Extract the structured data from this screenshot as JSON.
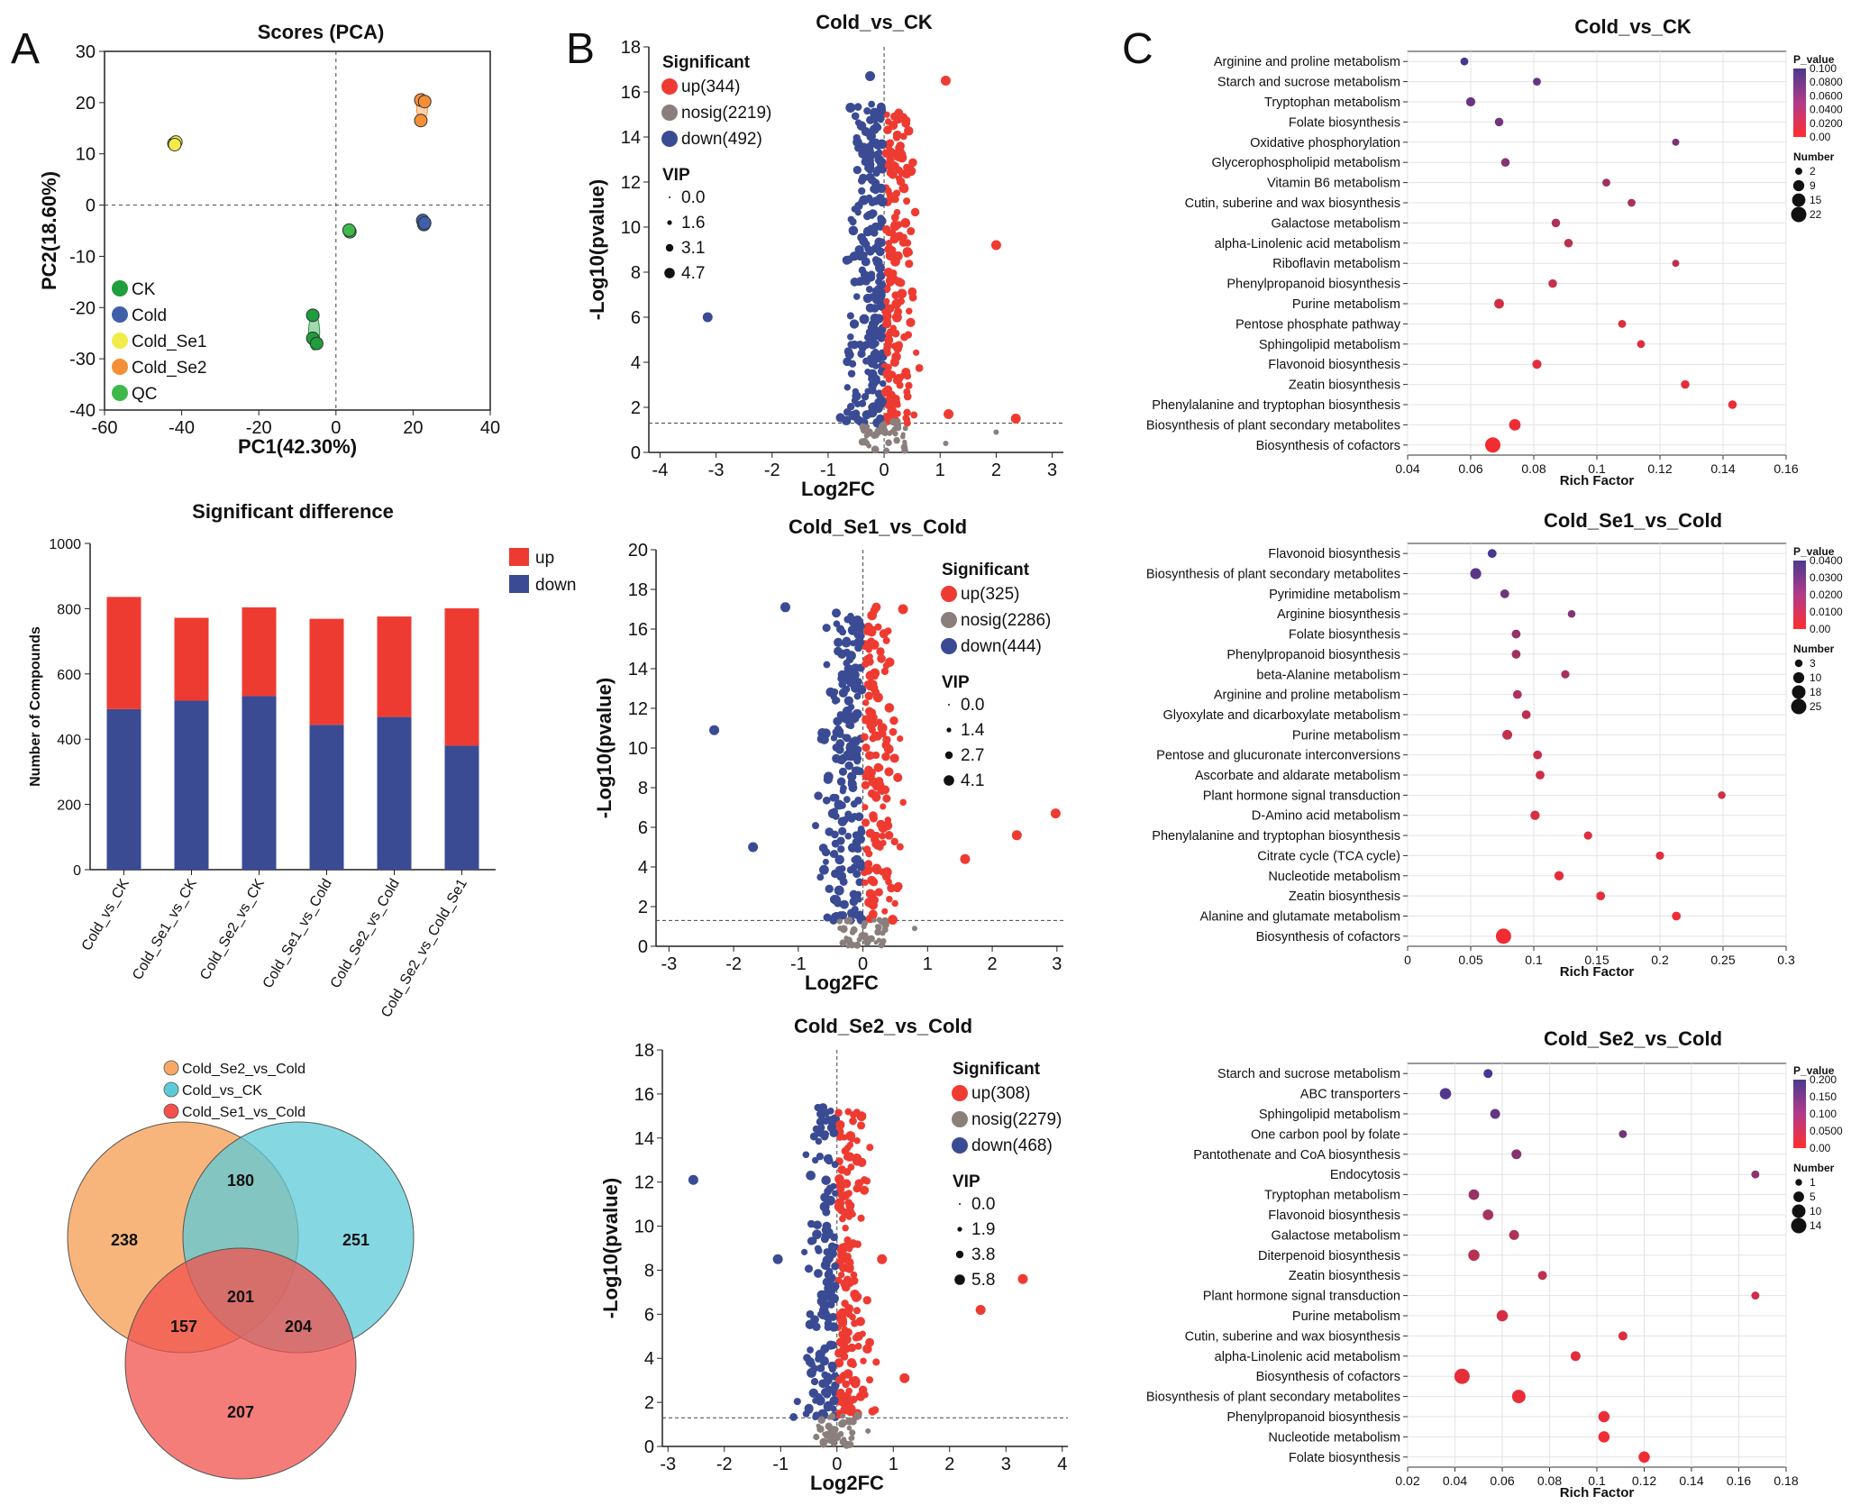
{
  "panels": {
    "A": "A",
    "B": "B",
    "C": "C"
  },
  "colors": {
    "up": "#ee3b32",
    "down": "#3a4b94",
    "nosig": "#8a7f7c",
    "CK": "#1e9e3c",
    "Cold": "#3f5faa",
    "Cold_Se1": "#f1ec4a",
    "Cold_Se2": "#f58f35",
    "QC": "#3eb84a",
    "venn1": "#f7a864",
    "venn2": "#5ccbd8",
    "venn3": "#f2514c"
  },
  "chart_data": [
    {
      "id": "pca",
      "type": "scatter",
      "title": "Scores (PCA)",
      "xlabel": "PC1(42.30%)",
      "ylabel": "PC2(18.60%)",
      "xlim": [
        -60,
        40
      ],
      "ylim": [
        -40,
        30
      ],
      "xticks": [
        -60,
        -40,
        -20,
        0,
        20,
        40
      ],
      "yticks": [
        -40,
        -30,
        -20,
        -10,
        0,
        10,
        20,
        30
      ],
      "legend": [
        "CK",
        "Cold",
        "Cold_Se1",
        "Cold_Se2",
        "QC"
      ],
      "groups": [
        {
          "name": "CK",
          "points": [
            [
              -6,
              -21.5
            ],
            [
              -6,
              -26
            ],
            [
              -5,
              -27
            ]
          ]
        },
        {
          "name": "Cold",
          "points": [
            [
              22.5,
              -3
            ],
            [
              22.8,
              -3.8
            ],
            [
              23,
              -3.5
            ]
          ]
        },
        {
          "name": "Cold_Se1",
          "points": [
            [
              -42,
              12
            ],
            [
              -41.5,
              12.3
            ],
            [
              -41.8,
              11.8
            ]
          ]
        },
        {
          "name": "Cold_Se2",
          "points": [
            [
              22,
              20.5
            ],
            [
              23,
              20.2
            ],
            [
              22,
              16.5
            ]
          ]
        },
        {
          "name": "QC",
          "points": [
            [
              3.5,
              -5
            ],
            [
              3.6,
              -5.2
            ],
            [
              3.4,
              -4.9
            ]
          ]
        }
      ]
    },
    {
      "id": "bars",
      "type": "bar",
      "title": "Significant difference",
      "ylabel": "Number of Compounds",
      "ylim": [
        0,
        1000
      ],
      "yticks": [
        0,
        200,
        400,
        600,
        800,
        1000
      ],
      "categories": [
        "Cold_vs_CK",
        "Cold_Se1_vs_CK",
        "Cold_Se2_vs_CK",
        "Cold_Se1_vs_Cold",
        "Cold_Se2_vs_Cold",
        "Cold_Se2_vs_Cold_Se1"
      ],
      "series": [
        {
          "name": "down",
          "values": [
            492,
            518,
            532,
            444,
            468,
            380
          ]
        },
        {
          "name": "up",
          "values": [
            344,
            254,
            272,
            325,
            308,
            421
          ]
        }
      ],
      "legend": [
        "up",
        "down"
      ]
    },
    {
      "id": "venn",
      "type": "venn",
      "legend": [
        "Cold_Se2_vs_Cold",
        "Cold_vs_CK",
        "Cold_Se1_vs_Cold"
      ],
      "regions": {
        "only_se2": 238,
        "only_ck": 251,
        "only_se1": 207,
        "se2_ck": 180,
        "se2_se1": 157,
        "ck_se1": 204,
        "all": 201
      }
    },
    {
      "id": "volcano1",
      "type": "scatter",
      "title": "Cold_vs_CK",
      "xlabel": "Log2FC",
      "ylabel": "-Log10(pvalue)",
      "xlim": [
        -4.2,
        3.2
      ],
      "ylim": [
        0,
        18
      ],
      "xticks": [
        -4,
        -3,
        -2,
        -1,
        0,
        1,
        2,
        3
      ],
      "yticks": [
        0,
        2,
        4,
        6,
        8,
        10,
        12,
        14,
        16,
        18
      ],
      "threshold": 1.3,
      "legend_title": "Significant",
      "legend": [
        "up(344)",
        "nosig(2219)",
        "down(492)"
      ],
      "vip_title": "VIP",
      "vip": [
        "0.0",
        "1.6",
        "3.1",
        "4.7"
      ],
      "outliers": [
        {
          "x": 1.1,
          "y": 16.5,
          "c": "up"
        },
        {
          "x": 2.0,
          "y": 9.2,
          "c": "up"
        },
        {
          "x": 1.15,
          "y": 1.7,
          "c": "up"
        },
        {
          "x": 2.35,
          "y": 1.5,
          "c": "up"
        },
        {
          "x": -3.15,
          "y": 6.0,
          "c": "down"
        },
        {
          "x": -0.6,
          "y": 15.3,
          "c": "down"
        },
        {
          "x": -0.25,
          "y": 16.7,
          "c": "down"
        },
        {
          "x": 2.0,
          "y": 0.9,
          "c": "nosig"
        },
        {
          "x": 1.1,
          "y": 0.4,
          "c": "nosig"
        }
      ]
    },
    {
      "id": "volcano2",
      "type": "scatter",
      "title": "Cold_Se1_vs_Cold",
      "xlabel": "Log2FC",
      "ylabel": "-Log10(pvalue)",
      "xlim": [
        -3.2,
        3.1
      ],
      "ylim": [
        0,
        20
      ],
      "xticks": [
        -3,
        -2,
        -1,
        0,
        1,
        2,
        3
      ],
      "yticks": [
        0,
        2,
        4,
        6,
        8,
        10,
        12,
        14,
        16,
        18,
        20
      ],
      "threshold": 1.3,
      "legend_title": "Significant",
      "legend": [
        "up(325)",
        "nosig(2286)",
        "down(444)"
      ],
      "vip_title": "VIP",
      "vip": [
        "0.0",
        "1.4",
        "2.7",
        "4.1"
      ],
      "outliers": [
        {
          "x": 2.98,
          "y": 6.7,
          "c": "up"
        },
        {
          "x": 2.38,
          "y": 5.6,
          "c": "up"
        },
        {
          "x": 1.58,
          "y": 4.4,
          "c": "up"
        },
        {
          "x": 0.62,
          "y": 17.0,
          "c": "up"
        },
        {
          "x": -2.3,
          "y": 10.9,
          "c": "down"
        },
        {
          "x": -1.7,
          "y": 5.0,
          "c": "down"
        },
        {
          "x": -1.2,
          "y": 17.1,
          "c": "down"
        },
        {
          "x": 0.8,
          "y": 0.9,
          "c": "nosig"
        }
      ]
    },
    {
      "id": "volcano3",
      "type": "scatter",
      "title": "Cold_Se2_vs_Cold",
      "xlabel": "Log2FC",
      "ylabel": "-Log10(pvalue)",
      "xlim": [
        -3.1,
        4.1
      ],
      "ylim": [
        0,
        18
      ],
      "xticks": [
        -3,
        -2,
        -1,
        0,
        1,
        2,
        3,
        4
      ],
      "yticks": [
        0,
        2,
        4,
        6,
        8,
        10,
        12,
        14,
        16,
        18
      ],
      "threshold": 1.3,
      "legend_title": "Significant",
      "legend": [
        "up(308)",
        "nosig(2279)",
        "down(468)"
      ],
      "vip_title": "VIP",
      "vip": [
        "0.0",
        "1.9",
        "3.8",
        "5.8"
      ],
      "outliers": [
        {
          "x": 3.3,
          "y": 7.6,
          "c": "up"
        },
        {
          "x": 2.55,
          "y": 6.2,
          "c": "up"
        },
        {
          "x": 1.2,
          "y": 3.1,
          "c": "up"
        },
        {
          "x": 0.8,
          "y": 8.5,
          "c": "up"
        },
        {
          "x": -2.55,
          "y": 12.1,
          "c": "down"
        },
        {
          "x": -1.05,
          "y": 8.5,
          "c": "down"
        },
        {
          "x": 0.55,
          "y": 0.7,
          "c": "nosig"
        }
      ]
    },
    {
      "id": "enrich1",
      "type": "scatter",
      "title": "Cold_vs_CK",
      "xlabel": "Rich Factor",
      "xlim": [
        0.04,
        0.16
      ],
      "xticks": [
        "0.04",
        "0.06",
        "0.08",
        "0.1",
        "0.12",
        "0.14",
        "0.16"
      ],
      "pvalue_title": "P_value",
      "pvalue_ticks": [
        "0.100",
        "0.0800",
        "0.0600",
        "0.0400",
        "0.0200",
        "0.00"
      ],
      "pmax": 0.1,
      "number_title": "Number",
      "number_ticks": [
        "2",
        "9",
        "15",
        "22"
      ],
      "nmax": 22,
      "pathways": [
        {
          "name": "Arginine and proline metabolism",
          "rf": 0.058,
          "p": 0.1,
          "n": 3
        },
        {
          "name": "Starch and sucrose metabolism",
          "rf": 0.081,
          "p": 0.085,
          "n": 3
        },
        {
          "name": "Tryptophan metabolism",
          "rf": 0.06,
          "p": 0.08,
          "n": 5
        },
        {
          "name": "Folate biosynthesis",
          "rf": 0.069,
          "p": 0.075,
          "n": 4
        },
        {
          "name": "Oxidative phosphorylation",
          "rf": 0.125,
          "p": 0.07,
          "n": 2
        },
        {
          "name": "Glycerophospholipid metabolism",
          "rf": 0.071,
          "p": 0.065,
          "n": 4
        },
        {
          "name": "Vitamin B6 metabolism",
          "rf": 0.103,
          "p": 0.05,
          "n": 3
        },
        {
          "name": "Cutin, suberine and wax biosynthesis",
          "rf": 0.111,
          "p": 0.045,
          "n": 3
        },
        {
          "name": "Galactose metabolism",
          "rf": 0.087,
          "p": 0.04,
          "n": 4
        },
        {
          "name": "alpha-Linolenic acid metabolism",
          "rf": 0.091,
          "p": 0.035,
          "n": 4
        },
        {
          "name": "Riboflavin metabolism",
          "rf": 0.125,
          "p": 0.03,
          "n": 2
        },
        {
          "name": "Phenylpropanoid biosynthesis",
          "rf": 0.086,
          "p": 0.025,
          "n": 4
        },
        {
          "name": "Purine metabolism",
          "rf": 0.069,
          "p": 0.02,
          "n": 6
        },
        {
          "name": "Pentose phosphate pathway",
          "rf": 0.108,
          "p": 0.015,
          "n": 3
        },
        {
          "name": "Sphingolipid metabolism",
          "rf": 0.114,
          "p": 0.012,
          "n": 3
        },
        {
          "name": "Flavonoid biosynthesis",
          "rf": 0.081,
          "p": 0.01,
          "n": 5
        },
        {
          "name": "Zeatin biosynthesis",
          "rf": 0.128,
          "p": 0.008,
          "n": 4
        },
        {
          "name": "Phenylalanine and tryptophan biosynthesis",
          "rf": 0.143,
          "p": 0.005,
          "n": 4
        },
        {
          "name": "Biosynthesis of plant secondary metabolites",
          "rf": 0.074,
          "p": 0.003,
          "n": 10
        },
        {
          "name": "Biosynthesis of cofactors",
          "rf": 0.067,
          "p": 0.0005,
          "n": 22
        }
      ]
    },
    {
      "id": "enrich2",
      "type": "scatter",
      "title": "Cold_Se1_vs_Cold",
      "xlabel": "Rich Factor",
      "xlim": [
        0,
        0.3
      ],
      "xticks": [
        "0",
        "0.05",
        "0.1",
        "0.15",
        "0.2",
        "0.25",
        "0.3"
      ],
      "pvalue_title": "P_value",
      "pvalue_ticks": [
        "0.0400",
        "0.0300",
        "0.0200",
        "0.0100",
        "0.00"
      ],
      "pmax": 0.045,
      "number_title": "Number",
      "number_ticks": [
        "3",
        "10",
        "18",
        "25"
      ],
      "nmax": 25,
      "pathways": [
        {
          "name": "Flavonoid biosynthesis",
          "rf": 0.067,
          "p": 0.045,
          "n": 5
        },
        {
          "name": "Biosynthesis of plant secondary metabolites",
          "rf": 0.054,
          "p": 0.04,
          "n": 10
        },
        {
          "name": "Pyrimidine metabolism",
          "rf": 0.077,
          "p": 0.035,
          "n": 5
        },
        {
          "name": "Arginine biosynthesis",
          "rf": 0.13,
          "p": 0.03,
          "n": 3
        },
        {
          "name": "Folate biosynthesis",
          "rf": 0.086,
          "p": 0.025,
          "n": 5
        },
        {
          "name": "Phenylpropanoid biosynthesis",
          "rf": 0.086,
          "p": 0.022,
          "n": 5
        },
        {
          "name": "beta-Alanine metabolism",
          "rf": 0.125,
          "p": 0.02,
          "n": 4
        },
        {
          "name": "Arginine and proline metabolism",
          "rf": 0.087,
          "p": 0.018,
          "n": 5
        },
        {
          "name": "Glyoxylate and dicarboxylate metabolism",
          "rf": 0.094,
          "p": 0.015,
          "n": 5
        },
        {
          "name": "Purine metabolism",
          "rf": 0.079,
          "p": 0.013,
          "n": 7
        },
        {
          "name": "Pentose and glucuronate interconversions",
          "rf": 0.103,
          "p": 0.011,
          "n": 5
        },
        {
          "name": "Ascorbate and aldarate metabolism",
          "rf": 0.105,
          "p": 0.01,
          "n": 5
        },
        {
          "name": "Plant hormone signal transduction",
          "rf": 0.249,
          "p": 0.009,
          "n": 3
        },
        {
          "name": "D-Amino acid metabolism",
          "rf": 0.101,
          "p": 0.008,
          "n": 6
        },
        {
          "name": "Phenylalanine and tryptophan biosynthesis",
          "rf": 0.143,
          "p": 0.007,
          "n": 4
        },
        {
          "name": "Citrate cycle (TCA cycle)",
          "rf": 0.2,
          "p": 0.005,
          "n": 4
        },
        {
          "name": "Nucleotide metabolism",
          "rf": 0.12,
          "p": 0.004,
          "n": 6
        },
        {
          "name": "Zeatin biosynthesis",
          "rf": 0.153,
          "p": 0.003,
          "n": 5
        },
        {
          "name": "Alanine and glutamate metabolism",
          "rf": 0.213,
          "p": 0.002,
          "n": 5
        },
        {
          "name": "Biosynthesis of cofactors",
          "rf": 0.076,
          "p": 0.0003,
          "n": 25
        }
      ]
    },
    {
      "id": "enrich3",
      "type": "scatter",
      "title": "Cold_Se2_vs_Cold",
      "xlabel": "Rich Factor",
      "xlim": [
        0.02,
        0.18
      ],
      "xticks": [
        "0.02",
        "0.04",
        "0.06",
        "0.08",
        "0.1",
        "0.12",
        "0.14",
        "0.16",
        "0.18"
      ],
      "pvalue_title": "P_value",
      "pvalue_ticks": [
        "0.200",
        "0.150",
        "0.100",
        "0.0500",
        "0.00"
      ],
      "pmax": 0.2,
      "number_title": "Number",
      "number_ticks": [
        "1",
        "5",
        "10",
        "14"
      ],
      "nmax": 14,
      "pathways": [
        {
          "name": "Starch and sucrose metabolism",
          "rf": 0.054,
          "p": 0.2,
          "n": 3
        },
        {
          "name": "ABC transporters",
          "rf": 0.036,
          "p": 0.19,
          "n": 6
        },
        {
          "name": "Sphingolipid metabolism",
          "rf": 0.057,
          "p": 0.17,
          "n": 4
        },
        {
          "name": "One carbon pool by folate",
          "rf": 0.111,
          "p": 0.15,
          "n": 2
        },
        {
          "name": "Pantothenate and CoA biosynthesis",
          "rf": 0.066,
          "p": 0.13,
          "n": 4
        },
        {
          "name": "Endocytosis",
          "rf": 0.167,
          "p": 0.12,
          "n": 2
        },
        {
          "name": "Tryptophan metabolism",
          "rf": 0.048,
          "p": 0.11,
          "n": 5
        },
        {
          "name": "Flavonoid biosynthesis",
          "rf": 0.054,
          "p": 0.09,
          "n": 5
        },
        {
          "name": "Galactose metabolism",
          "rf": 0.065,
          "p": 0.08,
          "n": 4
        },
        {
          "name": "Diterpenoid biosynthesis",
          "rf": 0.048,
          "p": 0.07,
          "n": 6
        },
        {
          "name": "Zeatin biosynthesis",
          "rf": 0.077,
          "p": 0.06,
          "n": 3
        },
        {
          "name": "Plant hormone signal transduction",
          "rf": 0.167,
          "p": 0.045,
          "n": 2
        },
        {
          "name": "Purine metabolism",
          "rf": 0.06,
          "p": 0.035,
          "n": 6
        },
        {
          "name": "Cutin, suberine and wax biosynthesis",
          "rf": 0.111,
          "p": 0.025,
          "n": 3
        },
        {
          "name": "alpha-Linolenic acid metabolism",
          "rf": 0.091,
          "p": 0.02,
          "n": 4
        },
        {
          "name": "Biosynthesis of cofactors",
          "rf": 0.043,
          "p": 0.015,
          "n": 14
        },
        {
          "name": "Biosynthesis of plant secondary metabolites",
          "rf": 0.067,
          "p": 0.01,
          "n": 10
        },
        {
          "name": "Phenylpropanoid biosynthesis",
          "rf": 0.103,
          "p": 0.006,
          "n": 6
        },
        {
          "name": "Nucleotide metabolism",
          "rf": 0.103,
          "p": 0.004,
          "n": 6
        },
        {
          "name": "Folate biosynthesis",
          "rf": 0.12,
          "p": 0.002,
          "n": 6
        }
      ]
    }
  ]
}
